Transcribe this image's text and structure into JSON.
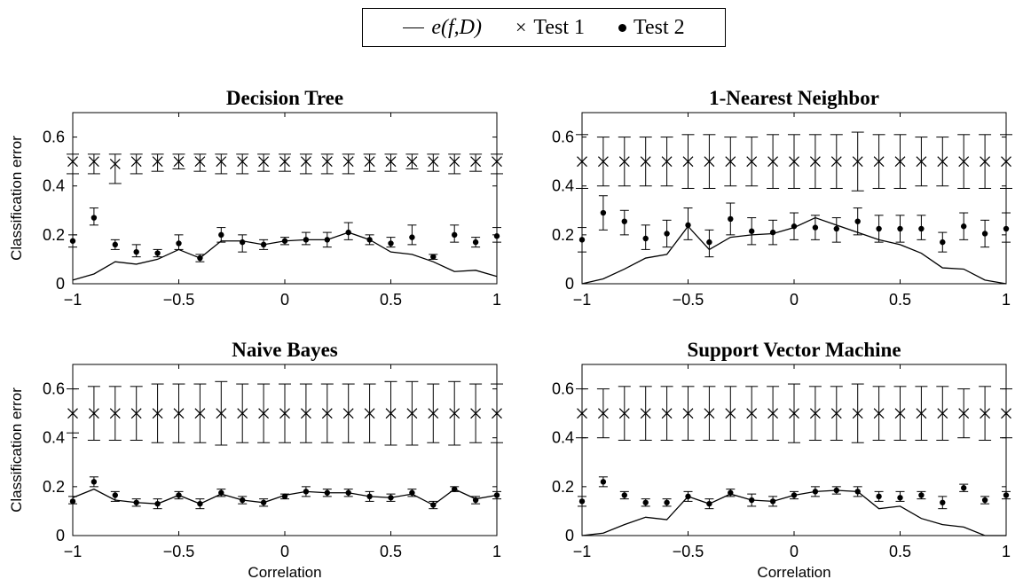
{
  "legend": {
    "line_label": "e(f,D)",
    "test1_label": "Test 1",
    "test2_label": "Test 2"
  },
  "chart_data": [
    {
      "type": "line",
      "title": "Decision Tree",
      "xlabel": "",
      "ylabel": "Classification error",
      "xlim": [
        -1,
        1
      ],
      "ylim": [
        0,
        0.7
      ],
      "xticks": [
        -1,
        -0.5,
        0,
        0.5,
        1
      ],
      "xtick_labels": [
        "−1",
        "−0.5",
        "0",
        "0.5",
        "1"
      ],
      "yticks": [
        0,
        0.2,
        0.4,
        0.6
      ],
      "ytick_labels": [
        "0",
        "0.2",
        "0.4",
        "0.6"
      ],
      "x": [
        -1,
        -0.9,
        -0.8,
        -0.7,
        -0.6,
        -0.5,
        -0.4,
        -0.3,
        -0.2,
        -0.1,
        0,
        0.1,
        0.2,
        0.3,
        0.4,
        0.5,
        0.6,
        0.7,
        0.8,
        0.9,
        1
      ],
      "series": [
        {
          "name": "e(f,D)",
          "kind": "line",
          "values": [
            0.015,
            0.04,
            0.09,
            0.08,
            0.1,
            0.14,
            0.105,
            0.175,
            0.175,
            0.16,
            0.175,
            0.18,
            0.18,
            0.21,
            0.18,
            0.13,
            0.12,
            0.09,
            0.05,
            0.055,
            0.03
          ]
        },
        {
          "name": "Test 1",
          "kind": "cross",
          "values": [
            0.5,
            0.5,
            0.49,
            0.5,
            0.5,
            0.5,
            0.5,
            0.5,
            0.5,
            0.5,
            0.5,
            0.5,
            0.5,
            0.5,
            0.5,
            0.5,
            0.5,
            0.5,
            0.5,
            0.5,
            0.5
          ],
          "err_low": [
            0.45,
            0.45,
            0.41,
            0.45,
            0.46,
            0.47,
            0.46,
            0.45,
            0.45,
            0.46,
            0.46,
            0.45,
            0.45,
            0.45,
            0.46,
            0.46,
            0.47,
            0.46,
            0.45,
            0.46,
            0.45
          ],
          "err_high": [
            0.53,
            0.53,
            0.53,
            0.53,
            0.53,
            0.53,
            0.53,
            0.53,
            0.53,
            0.53,
            0.53,
            0.53,
            0.53,
            0.53,
            0.53,
            0.53,
            0.53,
            0.53,
            0.53,
            0.53,
            0.53
          ]
        },
        {
          "name": "Test 2",
          "kind": "dot",
          "values": [
            0.175,
            0.27,
            0.16,
            0.13,
            0.125,
            0.165,
            0.105,
            0.2,
            0.17,
            0.16,
            0.175,
            0.18,
            0.18,
            0.21,
            0.18,
            0.165,
            0.19,
            0.11,
            0.2,
            0.17,
            0.195
          ],
          "err_low": [
            0.15,
            0.24,
            0.14,
            0.11,
            0.11,
            0.14,
            0.09,
            0.17,
            0.13,
            0.14,
            0.16,
            0.16,
            0.15,
            0.18,
            0.16,
            0.15,
            0.16,
            0.1,
            0.17,
            0.15,
            0.17
          ],
          "err_high": [
            0.2,
            0.31,
            0.18,
            0.16,
            0.14,
            0.2,
            0.12,
            0.23,
            0.2,
            0.18,
            0.19,
            0.21,
            0.21,
            0.25,
            0.2,
            0.19,
            0.24,
            0.12,
            0.24,
            0.19,
            0.23
          ]
        }
      ]
    },
    {
      "type": "line",
      "title": "1-Nearest Neighbor",
      "xlabel": "",
      "ylabel": "",
      "xlim": [
        -1,
        1
      ],
      "ylim": [
        0,
        0.7
      ],
      "xticks": [
        -1,
        -0.5,
        0,
        0.5,
        1
      ],
      "xtick_labels": [
        "−1",
        "−0.5",
        "0",
        "0.5",
        "1"
      ],
      "yticks": [
        0,
        0.2,
        0.4,
        0.6
      ],
      "ytick_labels": [
        "0",
        "0.2",
        "0.4",
        "0.6"
      ],
      "x": [
        -1,
        -0.9,
        -0.8,
        -0.7,
        -0.6,
        -0.5,
        -0.4,
        -0.3,
        -0.2,
        -0.1,
        0,
        0.1,
        0.2,
        0.3,
        0.4,
        0.5,
        0.6,
        0.7,
        0.8,
        0.9,
        1
      ],
      "series": [
        {
          "name": "e(f,D)",
          "kind": "line",
          "values": [
            0.0,
            0.02,
            0.06,
            0.105,
            0.12,
            0.235,
            0.14,
            0.19,
            0.2,
            0.205,
            0.23,
            0.27,
            0.24,
            0.21,
            0.18,
            0.16,
            0.125,
            0.065,
            0.06,
            0.015,
            0.0
          ]
        },
        {
          "name": "Test 1",
          "kind": "cross",
          "values": [
            0.5,
            0.5,
            0.5,
            0.5,
            0.5,
            0.5,
            0.5,
            0.5,
            0.5,
            0.5,
            0.5,
            0.5,
            0.5,
            0.5,
            0.5,
            0.5,
            0.5,
            0.5,
            0.5,
            0.5,
            0.5
          ],
          "err_low": [
            0.39,
            0.4,
            0.4,
            0.4,
            0.4,
            0.39,
            0.39,
            0.4,
            0.4,
            0.39,
            0.39,
            0.39,
            0.39,
            0.38,
            0.39,
            0.39,
            0.4,
            0.4,
            0.39,
            0.39,
            0.39
          ],
          "err_high": [
            0.61,
            0.6,
            0.6,
            0.6,
            0.6,
            0.61,
            0.61,
            0.6,
            0.6,
            0.61,
            0.61,
            0.61,
            0.61,
            0.62,
            0.61,
            0.61,
            0.6,
            0.6,
            0.61,
            0.61,
            0.61
          ]
        },
        {
          "name": "Test 2",
          "kind": "dot",
          "values": [
            0.18,
            0.29,
            0.255,
            0.185,
            0.205,
            0.24,
            0.17,
            0.265,
            0.215,
            0.21,
            0.235,
            0.23,
            0.225,
            0.255,
            0.225,
            0.225,
            0.225,
            0.17,
            0.235,
            0.205,
            0.225
          ],
          "err_low": [
            0.13,
            0.22,
            0.2,
            0.14,
            0.15,
            0.18,
            0.11,
            0.2,
            0.16,
            0.16,
            0.18,
            0.18,
            0.17,
            0.2,
            0.17,
            0.17,
            0.18,
            0.13,
            0.18,
            0.15,
            0.17
          ],
          "err_high": [
            0.23,
            0.36,
            0.3,
            0.24,
            0.26,
            0.31,
            0.22,
            0.33,
            0.27,
            0.26,
            0.29,
            0.28,
            0.27,
            0.31,
            0.28,
            0.28,
            0.28,
            0.21,
            0.29,
            0.26,
            0.29
          ]
        }
      ]
    },
    {
      "type": "line",
      "title": "Naive Bayes",
      "xlabel": "Correlation",
      "ylabel": "Classification error",
      "xlim": [
        -1,
        1
      ],
      "ylim": [
        0,
        0.7
      ],
      "xticks": [
        -1,
        -0.5,
        0,
        0.5,
        1
      ],
      "xtick_labels": [
        "−1",
        "−0.5",
        "0",
        "0.5",
        "1"
      ],
      "yticks": [
        0,
        0.2,
        0.4,
        0.6
      ],
      "ytick_labels": [
        "0",
        "0.2",
        "0.4",
        "0.6"
      ],
      "x": [
        -1,
        -0.9,
        -0.8,
        -0.7,
        -0.6,
        -0.5,
        -0.4,
        -0.3,
        -0.2,
        -0.1,
        0,
        0.1,
        0.2,
        0.3,
        0.4,
        0.5,
        0.6,
        0.7,
        0.8,
        0.9,
        1
      ],
      "series": [
        {
          "name": "e(f,D)",
          "kind": "line",
          "values": [
            0.155,
            0.19,
            0.145,
            0.135,
            0.13,
            0.165,
            0.13,
            0.17,
            0.145,
            0.135,
            0.165,
            0.18,
            0.175,
            0.175,
            0.16,
            0.155,
            0.17,
            0.125,
            0.19,
            0.15,
            0.165
          ]
        },
        {
          "name": "Test 1",
          "kind": "cross",
          "values": [
            0.5,
            0.5,
            0.5,
            0.5,
            0.5,
            0.5,
            0.5,
            0.5,
            0.5,
            0.5,
            0.5,
            0.5,
            0.5,
            0.5,
            0.5,
            0.5,
            0.5,
            0.5,
            0.5,
            0.5,
            0.5
          ],
          "err_low": [
            0.42,
            0.39,
            0.39,
            0.39,
            0.38,
            0.38,
            0.38,
            0.37,
            0.38,
            0.38,
            0.38,
            0.38,
            0.38,
            0.38,
            0.38,
            0.37,
            0.37,
            0.38,
            0.37,
            0.38,
            0.38
          ],
          "err_high": [
            0.6,
            0.61,
            0.61,
            0.61,
            0.62,
            0.62,
            0.62,
            0.63,
            0.62,
            0.62,
            0.62,
            0.62,
            0.62,
            0.62,
            0.62,
            0.63,
            0.63,
            0.62,
            0.63,
            0.62,
            0.62
          ]
        },
        {
          "name": "Test 2",
          "kind": "dot",
          "values": [
            0.14,
            0.22,
            0.165,
            0.135,
            0.13,
            0.165,
            0.13,
            0.175,
            0.145,
            0.135,
            0.16,
            0.18,
            0.175,
            0.175,
            0.16,
            0.155,
            0.175,
            0.125,
            0.19,
            0.145,
            0.165
          ],
          "err_low": [
            0.13,
            0.2,
            0.14,
            0.12,
            0.11,
            0.15,
            0.11,
            0.16,
            0.13,
            0.12,
            0.15,
            0.16,
            0.16,
            0.16,
            0.14,
            0.14,
            0.16,
            0.11,
            0.18,
            0.13,
            0.15
          ],
          "err_high": [
            0.16,
            0.24,
            0.18,
            0.15,
            0.15,
            0.18,
            0.15,
            0.19,
            0.16,
            0.15,
            0.17,
            0.2,
            0.19,
            0.19,
            0.18,
            0.17,
            0.19,
            0.14,
            0.2,
            0.16,
            0.18
          ]
        }
      ]
    },
    {
      "type": "line",
      "title": "Support Vector Machine",
      "xlabel": "Correlation",
      "ylabel": "",
      "xlim": [
        -1,
        1
      ],
      "ylim": [
        0,
        0.7
      ],
      "xticks": [
        -1,
        -0.5,
        0,
        0.5,
        1
      ],
      "xtick_labels": [
        "−1",
        "−0.5",
        "0",
        "0.5",
        "1"
      ],
      "yticks": [
        0,
        0.2,
        0.4,
        0.6
      ],
      "ytick_labels": [
        "0",
        "0.2",
        "0.4",
        "0.6"
      ],
      "x": [
        -1,
        -0.9,
        -0.8,
        -0.7,
        -0.6,
        -0.5,
        -0.4,
        -0.3,
        -0.2,
        -0.1,
        0,
        0.1,
        0.2,
        0.3,
        0.4,
        0.5,
        0.6,
        0.7,
        0.8,
        0.9,
        1
      ],
      "series": [
        {
          "name": "e(f,D)",
          "kind": "line",
          "values": [
            0.0,
            0.01,
            0.045,
            0.075,
            0.065,
            0.16,
            0.13,
            0.17,
            0.145,
            0.14,
            0.165,
            0.18,
            0.185,
            0.18,
            0.11,
            0.12,
            0.07,
            0.045,
            0.035,
            0.0,
            0.0
          ]
        },
        {
          "name": "Test 1",
          "kind": "cross",
          "values": [
            0.5,
            0.5,
            0.5,
            0.5,
            0.5,
            0.5,
            0.5,
            0.5,
            0.5,
            0.5,
            0.5,
            0.5,
            0.5,
            0.5,
            0.5,
            0.5,
            0.5,
            0.5,
            0.5,
            0.5,
            0.5
          ],
          "err_low": [
            0.4,
            0.4,
            0.39,
            0.39,
            0.39,
            0.39,
            0.39,
            0.39,
            0.39,
            0.39,
            0.38,
            0.39,
            0.39,
            0.38,
            0.39,
            0.39,
            0.39,
            0.39,
            0.4,
            0.39,
            0.4
          ],
          "err_high": [
            0.6,
            0.6,
            0.61,
            0.61,
            0.61,
            0.61,
            0.61,
            0.61,
            0.61,
            0.61,
            0.62,
            0.61,
            0.61,
            0.62,
            0.61,
            0.61,
            0.61,
            0.61,
            0.6,
            0.61,
            0.6
          ]
        },
        {
          "name": "Test 2",
          "kind": "dot",
          "values": [
            0.14,
            0.22,
            0.165,
            0.135,
            0.135,
            0.16,
            0.13,
            0.175,
            0.145,
            0.14,
            0.165,
            0.18,
            0.185,
            0.18,
            0.16,
            0.155,
            0.165,
            0.135,
            0.195,
            0.145,
            0.165
          ],
          "err_low": [
            0.12,
            0.2,
            0.15,
            0.12,
            0.12,
            0.14,
            0.11,
            0.16,
            0.12,
            0.12,
            0.15,
            0.16,
            0.17,
            0.16,
            0.14,
            0.14,
            0.15,
            0.11,
            0.18,
            0.13,
            0.15
          ],
          "err_high": [
            0.16,
            0.24,
            0.18,
            0.15,
            0.15,
            0.18,
            0.15,
            0.19,
            0.17,
            0.16,
            0.18,
            0.2,
            0.2,
            0.2,
            0.18,
            0.18,
            0.18,
            0.16,
            0.21,
            0.16,
            0.18
          ]
        }
      ]
    }
  ]
}
